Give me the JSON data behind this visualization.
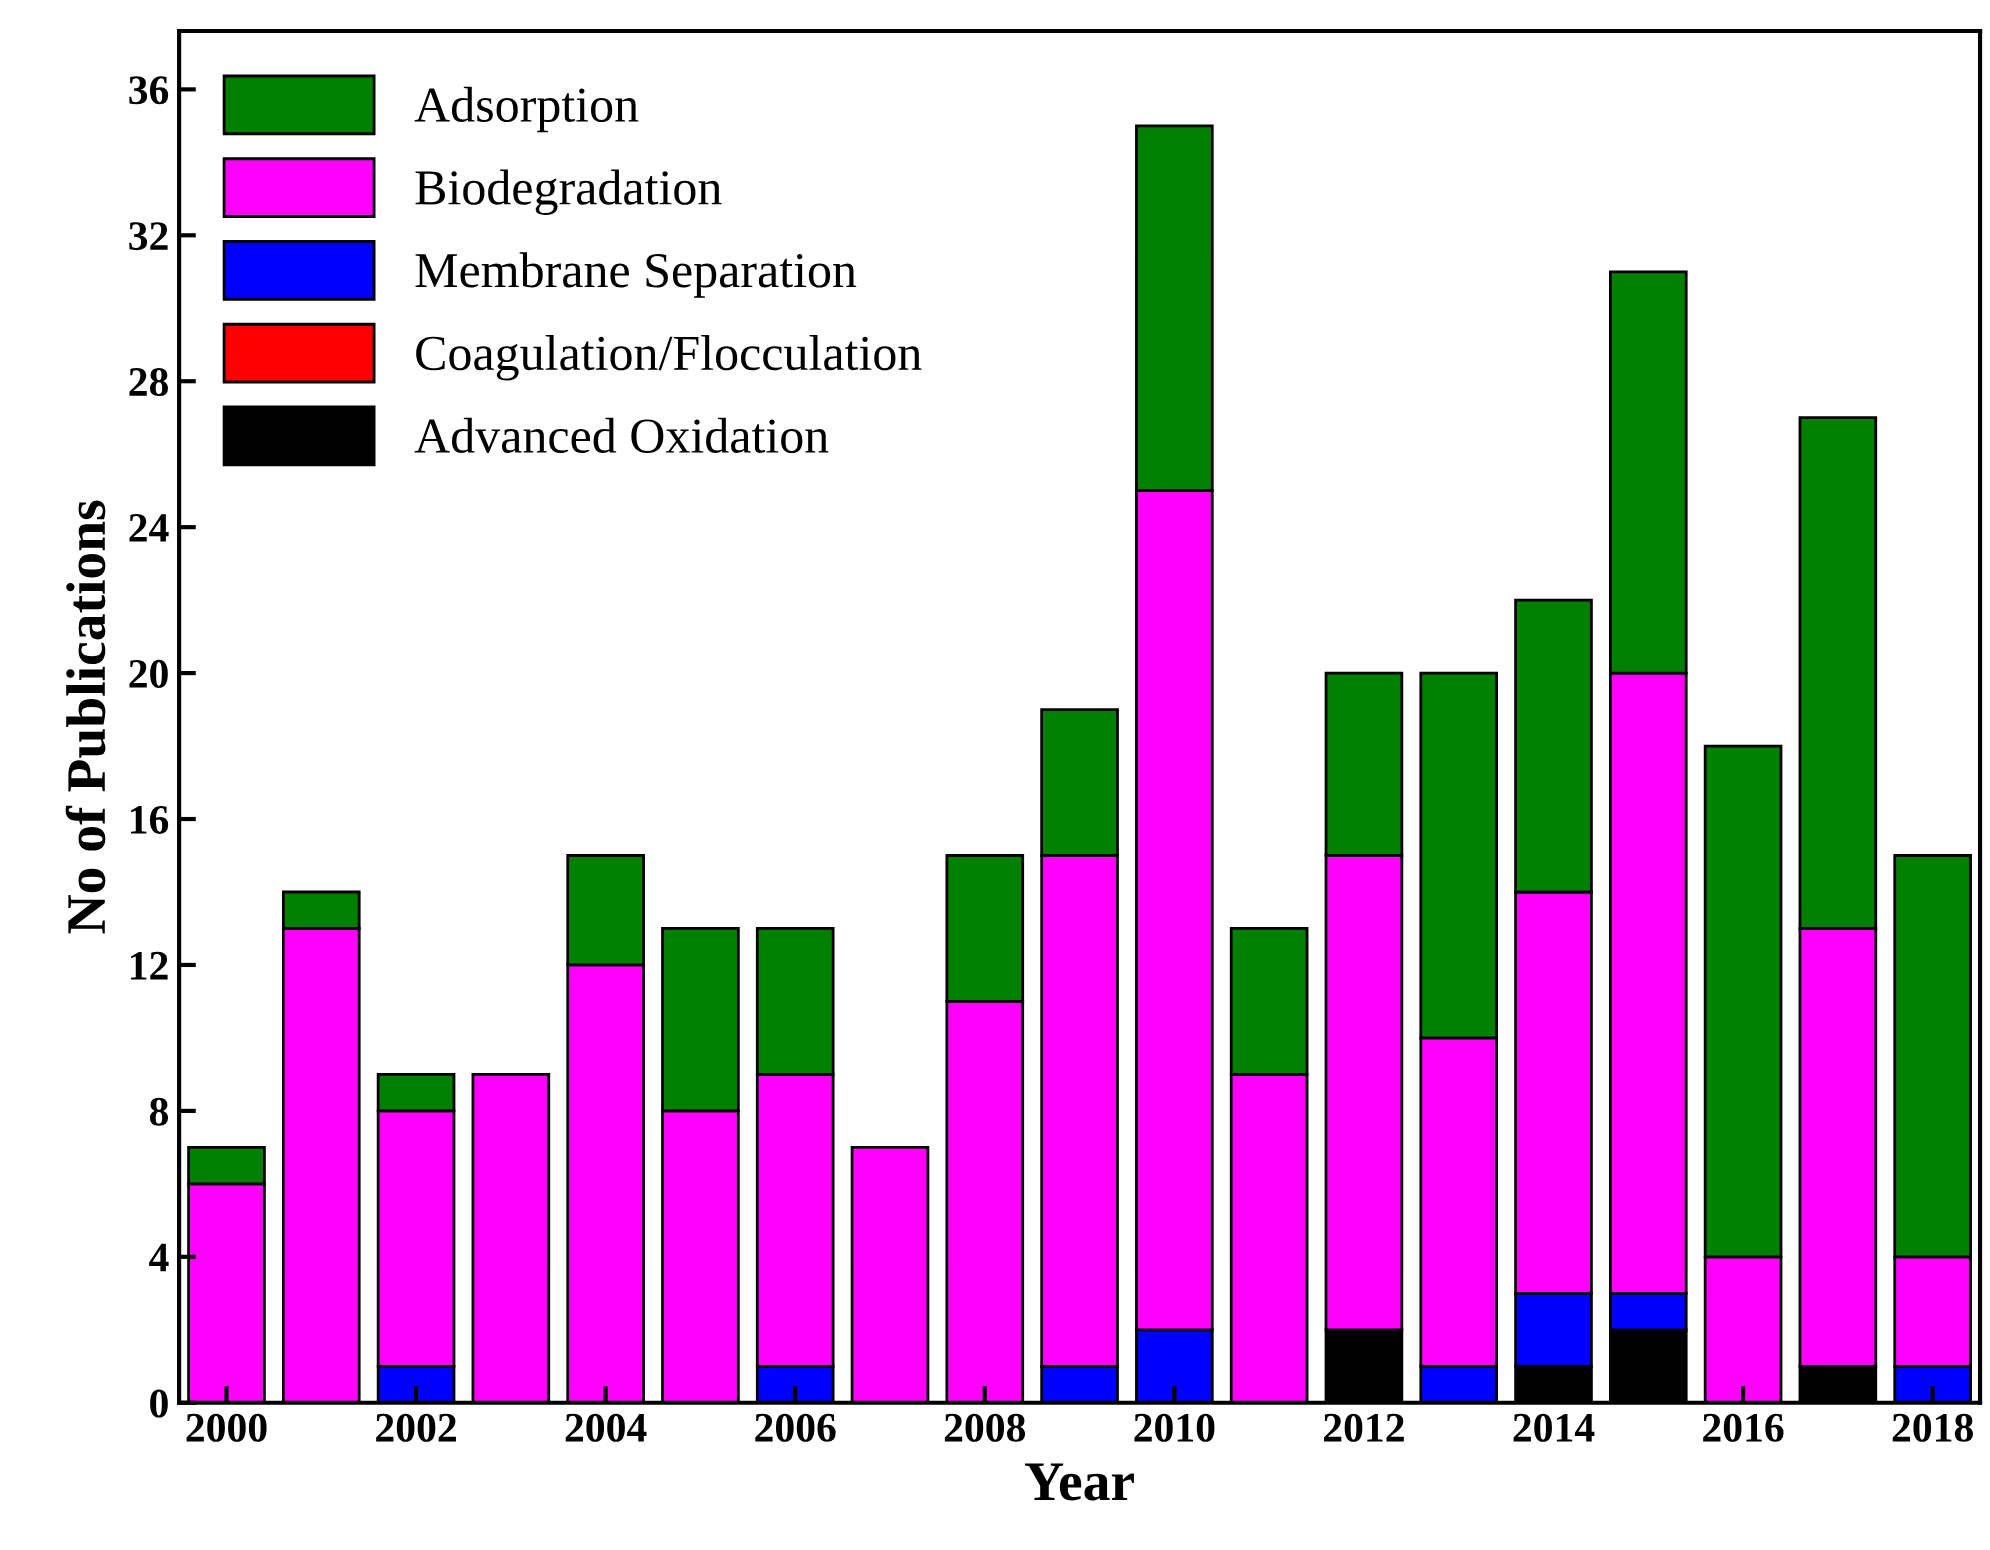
{
  "chart_data": {
    "type": "bar",
    "stacked": true,
    "xlabel": "Year",
    "ylabel": "No of Publications",
    "categories": [
      "2000",
      null,
      "2002",
      null,
      "2004",
      null,
      "2006",
      null,
      "2008",
      null,
      "2010",
      null,
      "2012",
      null,
      "2014",
      null,
      "2016",
      null,
      "2018"
    ],
    "series": [
      {
        "name": "Advanced Oxidation",
        "color": "#000000",
        "values": [
          0,
          0,
          0,
          0,
          0,
          0,
          0,
          0,
          0,
          0,
          0,
          0,
          2,
          0,
          1,
          2,
          0,
          1,
          0
        ]
      },
      {
        "name": "Coagulation/Flocculation",
        "color": "#ff0000",
        "values": [
          0,
          0,
          0,
          0,
          0,
          0,
          0,
          0,
          0,
          0,
          0,
          0,
          0,
          0,
          0,
          0,
          0,
          0,
          0
        ]
      },
      {
        "name": "Membrane Separation",
        "color": "#0000ff",
        "values": [
          0,
          0,
          1,
          0,
          0,
          0,
          1,
          0,
          0,
          1,
          2,
          0,
          0,
          1,
          2,
          1,
          0,
          0,
          1
        ]
      },
      {
        "name": "Biodegradation",
        "color": "#ff00ff",
        "values": [
          6,
          13,
          7,
          9,
          12,
          8,
          8,
          7,
          11,
          14,
          23,
          9,
          13,
          9,
          11,
          17,
          4,
          12,
          3
        ]
      },
      {
        "name": "Adsorption",
        "color": "#008000",
        "values": [
          1,
          1,
          1,
          0,
          3,
          5,
          4,
          0,
          4,
          4,
          10,
          4,
          5,
          10,
          8,
          11,
          14,
          14,
          11
        ]
      }
    ],
    "ylim": [
      0,
      37.6
    ],
    "yticks": [
      0,
      4,
      8,
      12,
      16,
      20,
      24,
      28,
      32,
      36
    ],
    "grid": false,
    "legend": "top left"
  }
}
